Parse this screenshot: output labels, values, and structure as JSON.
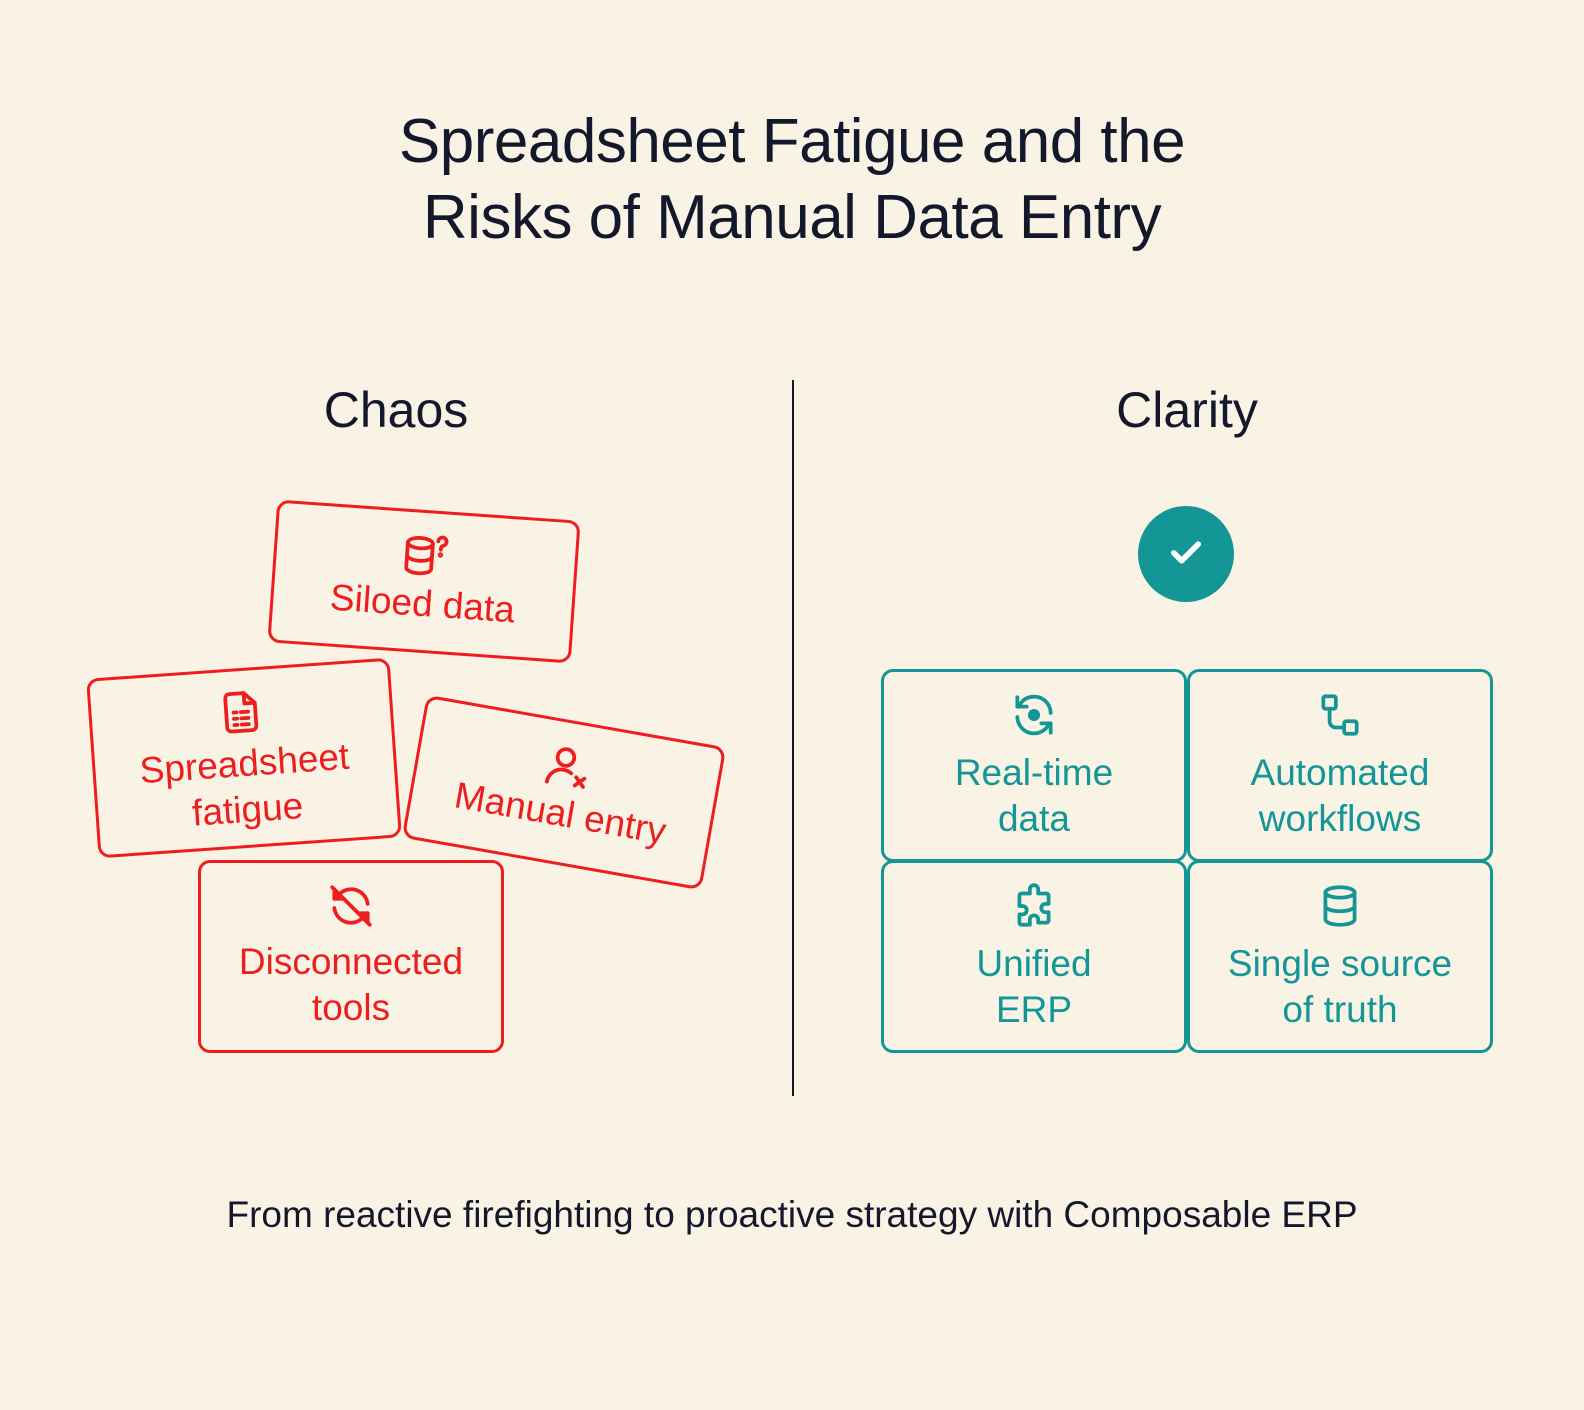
{
  "title": {
    "line1": "Spreadsheet Fatigue and the",
    "line2": "Risks of Manual Data Entry"
  },
  "chaos": {
    "heading": "Chaos",
    "cards": {
      "siloed_data": {
        "label": "Siloed data",
        "icon": "database-question-icon"
      },
      "spreadsheet_fatigue": {
        "label_line1": "Spreadsheet",
        "label_line2": "fatigue",
        "icon": "spreadsheet-file-icon"
      },
      "manual_entry": {
        "label": "Manual entry",
        "icon": "user-x-icon"
      },
      "disconnected_tools": {
        "label_line1": "Disconnected",
        "label_line2": "tools",
        "icon": "sync-off-icon"
      }
    }
  },
  "clarity": {
    "heading": "Clarity",
    "check_icon": "check-icon",
    "cards": {
      "realtime_data": {
        "label_line1": "Real-time",
        "label_line2": "data",
        "icon": "refresh-icon"
      },
      "automated_workflows": {
        "label_line1": "Automated",
        "label_line2": "workflows",
        "icon": "workflow-icon"
      },
      "unified_erp": {
        "label_line1": "Unified",
        "label_line2": "ERP",
        "icon": "puzzle-icon"
      },
      "single_source": {
        "label_line1": "Single source",
        "label_line2": "of truth",
        "icon": "database-icon"
      }
    }
  },
  "footer": "From reactive firefighting to proactive strategy with Composable ERP",
  "colors": {
    "background": "#F9F3E6",
    "text": "#14182B",
    "chaos_red": "#EE1E1E",
    "clarity_teal": "#139695"
  }
}
